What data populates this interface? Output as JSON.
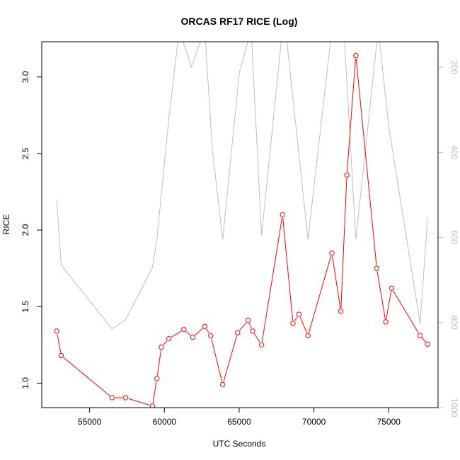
{
  "chart_data": {
    "type": "line",
    "title": "ORCAS RF17 RICE (Log)",
    "xlabel": "UTC Seconds",
    "ylabel": "RICE",
    "xlim": [
      51800,
      78300
    ],
    "ylim": [
      0.84,
      3.23
    ],
    "y2lim": [
      1000,
      140
    ],
    "y2_reversed": true,
    "x_ticks": [
      55000,
      60000,
      65000,
      70000,
      75000
    ],
    "y_ticks": [
      1.0,
      1.5,
      2.0,
      2.5,
      3.0
    ],
    "y2_ticks": [
      200,
      400,
      600,
      800,
      1000
    ],
    "x_tick_labels": [
      "55000",
      "60000",
      "65000",
      "70000",
      "75000"
    ],
    "y_tick_labels": [
      "1.0",
      "1.5",
      "2.0",
      "2.5",
      "3.0"
    ],
    "y2_tick_labels": [
      "200",
      "400",
      "600",
      "800",
      "1000"
    ],
    "grid": false,
    "series": [
      {
        "axis": "left",
        "color": "#ff0000",
        "marker": "open-circle",
        "x": [
          52800,
          53100,
          56500,
          57400,
          59200,
          59500,
          59800,
          60300,
          61300,
          61900,
          62700,
          63100,
          63900,
          64900,
          65600,
          65900,
          66500,
          67900,
          68600,
          69000,
          69600,
          71200,
          71800,
          72200,
          72800,
          74200,
          74800,
          75200,
          77100,
          77600
        ],
        "y": [
          1.34,
          1.18,
          0.905,
          0.905,
          0.85,
          1.03,
          1.235,
          1.29,
          1.35,
          1.3,
          1.37,
          1.31,
          0.99,
          1.33,
          1.41,
          1.34,
          1.25,
          2.1,
          1.39,
          1.45,
          1.31,
          1.85,
          1.47,
          2.36,
          3.14,
          1.75,
          1.4,
          1.62,
          1.31,
          1.255
        ]
      },
      {
        "axis": "right",
        "color": "#bebebe",
        "marker": "none",
        "x": [
          52800,
          53100,
          56500,
          57400,
          59200,
          59500,
          60300,
          61000,
          61800,
          62700,
          63200,
          63900,
          65000,
          65800,
          66500,
          67900,
          68100,
          69600,
          71200,
          72000,
          72800,
          74300,
          75000,
          77100,
          77600
        ],
        "y": [
          510,
          665,
          815,
          793,
          671,
          605,
          320,
          110,
          200,
          110,
          390,
          605,
          215,
          110,
          595,
          110,
          110,
          605,
          110,
          110,
          605,
          110,
          340,
          802,
          555
        ]
      }
    ]
  }
}
